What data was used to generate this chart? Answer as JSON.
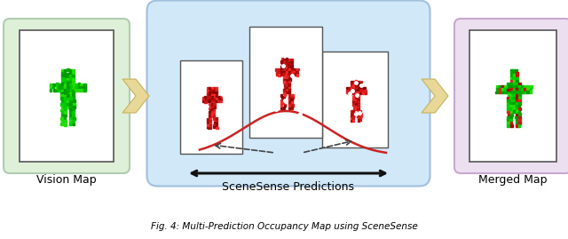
{
  "vision_map_label": "Vision Map",
  "merged_map_label": "Merged Map",
  "scenesense_label": "SceneSense Predictions",
  "caption": "Fig. 4: Multi-Prediction Occupancy Map using SceneSense",
  "bg_color": "#ffffff",
  "vision_box_color": "#dff0d8",
  "vision_box_edge": "#b0ccb0",
  "merged_box_color": "#ece0f0",
  "merged_box_edge": "#c8a8d0",
  "center_box_color": "#d0e8f8",
  "center_box_edge": "#a0c0e0",
  "arrow_chevron_color": "#e8d898",
  "double_arrow_color": "#111111",
  "curve_color": "#cc2222",
  "dashed_color": "#444444",
  "label_fontsize": 9,
  "caption_fontsize": 7.5
}
